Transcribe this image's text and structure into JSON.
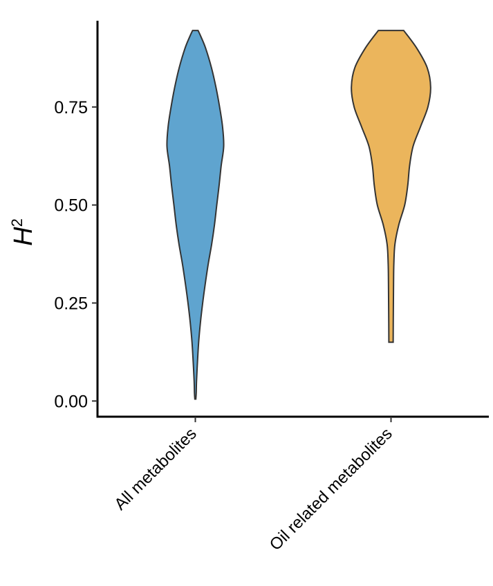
{
  "chart_data": {
    "type": "violin",
    "title": "",
    "xlabel": "",
    "ylabel": "H",
    "ylabel_superscript": "2",
    "ylim": [
      -0.04,
      0.97
    ],
    "yticks": [
      {
        "value": 0.0,
        "label": "0.00"
      },
      {
        "value": 0.25,
        "label": "0.25"
      },
      {
        "value": 0.5,
        "label": "0.50"
      },
      {
        "value": 0.75,
        "label": "0.75"
      }
    ],
    "grid": false,
    "legend": "none",
    "categories": [
      "All metabolites",
      "Oil related metabolites"
    ],
    "series": [
      {
        "category": "All metabolites",
        "color": "#5fa4cf",
        "min": 0.005,
        "max": 0.945,
        "density_profile": [
          [
            0.005,
            0.005
          ],
          [
            0.02,
            0.009
          ],
          [
            0.05,
            0.012
          ],
          [
            0.1,
            0.022
          ],
          [
            0.15,
            0.034
          ],
          [
            0.2,
            0.052
          ],
          [
            0.25,
            0.075
          ],
          [
            0.3,
            0.102
          ],
          [
            0.35,
            0.132
          ],
          [
            0.4,
            0.167
          ],
          [
            0.45,
            0.196
          ],
          [
            0.5,
            0.219
          ],
          [
            0.55,
            0.243
          ],
          [
            0.6,
            0.264
          ],
          [
            0.65,
            0.29
          ],
          [
            0.7,
            0.278
          ],
          [
            0.75,
            0.248
          ],
          [
            0.8,
            0.211
          ],
          [
            0.85,
            0.165
          ],
          [
            0.9,
            0.105
          ],
          [
            0.93,
            0.056
          ],
          [
            0.945,
            0.028
          ]
        ]
      },
      {
        "category": "Oil related metabolites",
        "color": "#ebb55c",
        "min": 0.15,
        "max": 0.945,
        "density_profile": [
          [
            0.15,
            0.022
          ],
          [
            0.2,
            0.023
          ],
          [
            0.3,
            0.026
          ],
          [
            0.35,
            0.029
          ],
          [
            0.4,
            0.04
          ],
          [
            0.45,
            0.08
          ],
          [
            0.5,
            0.14
          ],
          [
            0.55,
            0.171
          ],
          [
            0.6,
            0.19
          ],
          [
            0.65,
            0.226
          ],
          [
            0.7,
            0.302
          ],
          [
            0.75,
            0.377
          ],
          [
            0.8,
            0.405
          ],
          [
            0.85,
            0.37
          ],
          [
            0.9,
            0.263
          ],
          [
            0.945,
            0.13
          ]
        ]
      }
    ]
  }
}
